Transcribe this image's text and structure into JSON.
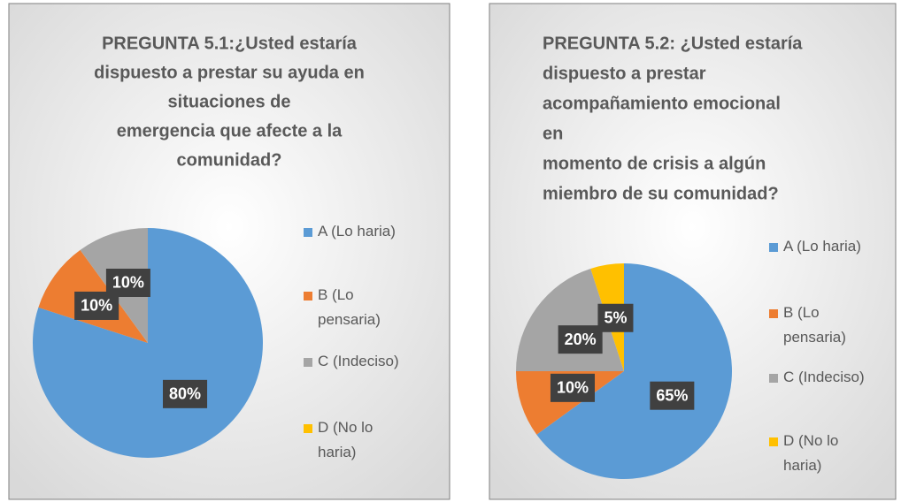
{
  "chart_data": [
    {
      "type": "pie",
      "title": [
        "PREGUNTA 5.1:¿Usted estaría",
        "dispuesto a prestar su ayuda en",
        "situaciones de",
        "emergencia que afecte a la",
        "comunidad?"
      ],
      "categories": [
        "A (Lo haria)",
        "B (Lo pensaria)",
        "C (Indeciso)",
        "D (No lo haria)"
      ],
      "values": [
        80,
        10,
        10,
        0
      ],
      "value_labels": [
        "80%",
        "10%",
        "10%",
        null
      ],
      "colors": [
        "#5b9bd5",
        "#ed7d31",
        "#a5a5a5",
        "#ffc000"
      ],
      "legend": "right"
    },
    {
      "type": "pie",
      "title": [
        "PREGUNTA 5.2: ¿Usted estaría",
        "dispuesto a prestar",
        "acompañamiento emocional",
        "en",
        "momento de crisis a algún",
        "miembro de su comunidad?"
      ],
      "categories": [
        "A (Lo haria)",
        "B (Lo pensaria)",
        "C (Indeciso)",
        "D (No lo haria)"
      ],
      "values": [
        65,
        10,
        20,
        5
      ],
      "value_labels": [
        "65%",
        "10%",
        "20%",
        "5%"
      ],
      "colors": [
        "#5b9bd5",
        "#ed7d31",
        "#a5a5a5",
        "#ffc000"
      ],
      "legend": "right"
    }
  ]
}
